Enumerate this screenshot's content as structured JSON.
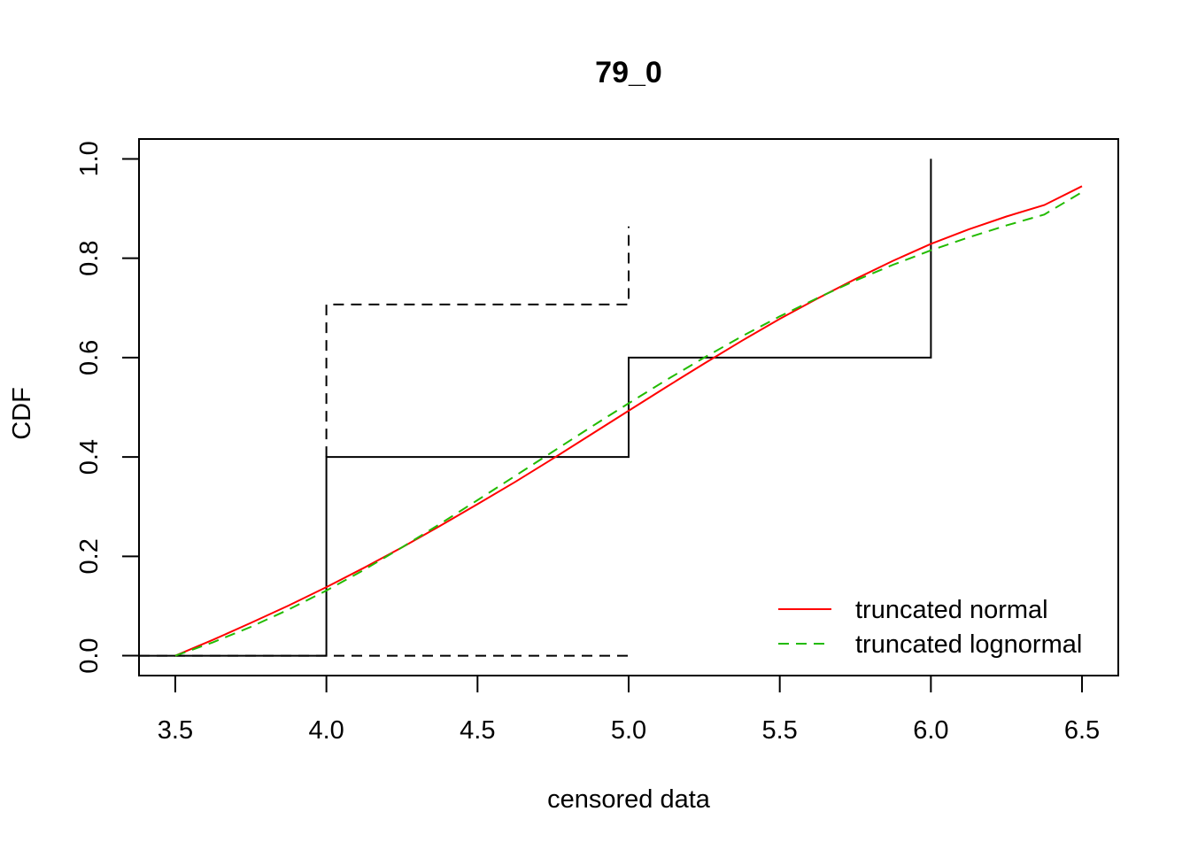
{
  "chart_data": {
    "type": "line",
    "title": "79_0",
    "xlabel": "censored data",
    "ylabel": "CDF",
    "xlim": [
      3.38,
      6.62
    ],
    "ylim": [
      -0.04,
      1.04
    ],
    "x_ticks": [
      3.5,
      4.0,
      4.5,
      5.0,
      5.5,
      6.0,
      6.5
    ],
    "x_tick_labels": [
      "3.5",
      "4.0",
      "4.5",
      "5.0",
      "5.5",
      "6.0",
      "6.5"
    ],
    "y_ticks": [
      0.0,
      0.2,
      0.4,
      0.6,
      0.8,
      1.0
    ],
    "y_tick_labels": [
      "0.0",
      "0.2",
      "0.4",
      "0.6",
      "0.8",
      "1.0"
    ],
    "grid": false,
    "legend_position": "bottom-right",
    "empirical_steps": [
      {
        "x": 3.38,
        "y": 0.0
      },
      {
        "x": 4.0,
        "y": 0.0
      },
      {
        "x": 4.0,
        "y": 0.4
      },
      {
        "x": 5.0,
        "y": 0.4
      },
      {
        "x": 5.0,
        "y": 0.6
      },
      {
        "x": 6.0,
        "y": 0.6
      },
      {
        "x": 6.0,
        "y": 1.0
      }
    ],
    "bounds_dashed": [
      [
        {
          "x": 3.38,
          "y": 0.0
        },
        {
          "x": 5.0,
          "y": 0.0
        }
      ],
      [
        {
          "x": 4.0,
          "y": 0.4
        },
        {
          "x": 4.0,
          "y": 0.707
        },
        {
          "x": 5.0,
          "y": 0.707
        },
        {
          "x": 5.0,
          "y": 0.864
        }
      ]
    ],
    "series": [
      {
        "name": "truncated normal",
        "color": "#ff0000",
        "dash": "solid",
        "x": [
          3.5,
          3.625,
          3.75,
          3.875,
          4.0,
          4.125,
          4.25,
          4.375,
          4.5,
          4.625,
          4.75,
          4.875,
          5.0,
          5.125,
          5.25,
          5.375,
          5.5,
          5.625,
          5.75,
          5.875,
          6.0,
          6.125,
          6.25,
          6.375,
          6.5
        ],
        "y": [
          0.0,
          0.032,
          0.066,
          0.101,
          0.138,
          0.177,
          0.218,
          0.261,
          0.305,
          0.35,
          0.397,
          0.445,
          0.493,
          0.541,
          0.588,
          0.634,
          0.678,
          0.719,
          0.758,
          0.795,
          0.829,
          0.858,
          0.884,
          0.907,
          0.945
        ]
      },
      {
        "name": "truncated lognormal",
        "color": "#22bb00",
        "dash": "dashed",
        "x": [
          3.5,
          3.625,
          3.75,
          3.875,
          4.0,
          4.125,
          4.25,
          4.375,
          4.5,
          4.625,
          4.75,
          4.875,
          5.0,
          5.125,
          5.25,
          5.375,
          5.5,
          5.625,
          5.75,
          5.875,
          6.0,
          6.125,
          6.25,
          6.375,
          6.5
        ],
        "y": [
          0.0,
          0.027,
          0.058,
          0.093,
          0.131,
          0.173,
          0.218,
          0.265,
          0.313,
          0.362,
          0.411,
          0.46,
          0.508,
          0.555,
          0.6,
          0.643,
          0.683,
          0.72,
          0.755,
          0.787,
          0.816,
          0.842,
          0.866,
          0.888,
          0.933
        ]
      }
    ]
  }
}
